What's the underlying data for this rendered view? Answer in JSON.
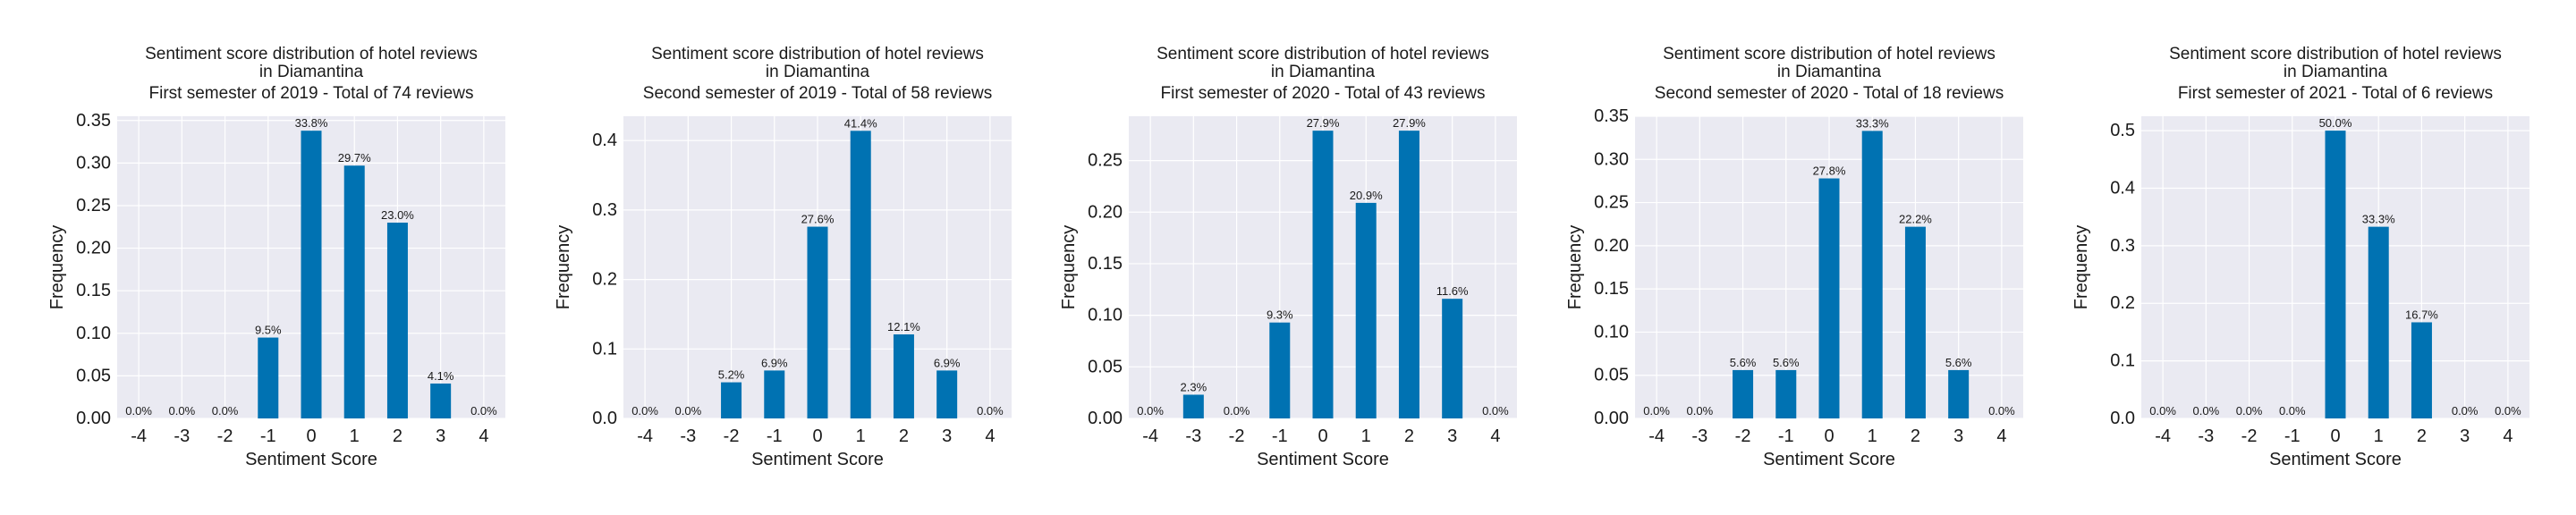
{
  "colors": {
    "bar": "#0072b2",
    "plot_bg": "#eaeaf2",
    "grid": "#ffffff",
    "text": "#1a1a1a"
  },
  "chart_data": [
    {
      "type": "bar",
      "title": [
        "Sentiment score distribution of hotel reviews",
        "in Diamantina",
        "First semester of 2019 - Total of 74 reviews"
      ],
      "xlabel": "Sentiment Score",
      "ylabel": "Frequency",
      "categories": [
        "-4",
        "-3",
        "-2",
        "-1",
        "0",
        "1",
        "2",
        "3",
        "4"
      ],
      "values": [
        0,
        0,
        0,
        0.095,
        0.338,
        0.297,
        0.23,
        0.041,
        0
      ],
      "data_labels": [
        "0.0%",
        "0.0%",
        "0.0%",
        "9.5%",
        "33.8%",
        "29.7%",
        "23.0%",
        "4.1%",
        "0.0%"
      ],
      "ylim": [
        0,
        0.355
      ],
      "yticks": [
        0,
        0.05,
        0.1,
        0.15,
        0.2,
        0.25,
        0.3,
        0.35
      ],
      "ytick_labels": [
        "0.00",
        "0.05",
        "0.10",
        "0.15",
        "0.20",
        "0.25",
        "0.30",
        "0.35"
      ],
      "grid": true
    },
    {
      "type": "bar",
      "title": [
        "Sentiment score distribution of hotel reviews",
        "in Diamantina",
        "Second semester of 2019 - Total of 58 reviews"
      ],
      "xlabel": "Sentiment Score",
      "ylabel": "Frequency",
      "categories": [
        "-4",
        "-3",
        "-2",
        "-1",
        "0",
        "1",
        "2",
        "3",
        "4"
      ],
      "values": [
        0,
        0,
        0.052,
        0.069,
        0.276,
        0.414,
        0.121,
        0.069,
        0
      ],
      "data_labels": [
        "0.0%",
        "0.0%",
        "5.2%",
        "6.9%",
        "27.6%",
        "41.4%",
        "12.1%",
        "6.9%",
        "0.0%"
      ],
      "ylim": [
        0,
        0.435
      ],
      "yticks": [
        0,
        0.1,
        0.2,
        0.3,
        0.4
      ],
      "ytick_labels": [
        "0.0",
        "0.1",
        "0.2",
        "0.3",
        "0.4"
      ],
      "grid": true
    },
    {
      "type": "bar",
      "title": [
        "Sentiment score distribution of hotel reviews",
        "in Diamantina",
        "First semester of 2020 - Total of 43 reviews"
      ],
      "xlabel": "Sentiment Score",
      "ylabel": "Frequency",
      "categories": [
        "-4",
        "-3",
        "-2",
        "-1",
        "0",
        "1",
        "2",
        "3",
        "4"
      ],
      "values": [
        0,
        0.023,
        0,
        0.093,
        0.279,
        0.209,
        0.279,
        0.116,
        0
      ],
      "data_labels": [
        "0.0%",
        "2.3%",
        "0.0%",
        "9.3%",
        "27.9%",
        "20.9%",
        "27.9%",
        "11.6%",
        "0.0%"
      ],
      "ylim": [
        0,
        0.293
      ],
      "yticks": [
        0,
        0.05,
        0.1,
        0.15,
        0.2,
        0.25
      ],
      "ytick_labels": [
        "0.00",
        "0.05",
        "0.10",
        "0.15",
        "0.20",
        "0.25"
      ],
      "grid": true
    },
    {
      "type": "bar",
      "title": [
        "Sentiment score distribution of hotel reviews",
        "in Diamantina",
        "Second semester of 2020 - Total of 18 reviews"
      ],
      "xlabel": "Sentiment Score",
      "ylabel": "Frequency",
      "categories": [
        "-4",
        "-3",
        "-2",
        "-1",
        "0",
        "1",
        "2",
        "3",
        "4"
      ],
      "values": [
        0,
        0,
        0.056,
        0.056,
        0.278,
        0.333,
        0.222,
        0.056,
        0
      ],
      "data_labels": [
        "0.0%",
        "0.0%",
        "5.6%",
        "5.6%",
        "27.8%",
        "33.3%",
        "22.2%",
        "5.6%",
        "0.0%"
      ],
      "ylim": [
        0,
        0.35
      ],
      "yticks": [
        0,
        0.05,
        0.1,
        0.15,
        0.2,
        0.25,
        0.3,
        0.35
      ],
      "ytick_labels": [
        "0.00",
        "0.05",
        "0.10",
        "0.15",
        "0.20",
        "0.25",
        "0.30",
        "0.35"
      ],
      "grid": true
    },
    {
      "type": "bar",
      "title": [
        "Sentiment score distribution of hotel reviews",
        "in Diamantina",
        "First semester of 2021 - Total of 6 reviews"
      ],
      "xlabel": "Sentiment Score",
      "ylabel": "Frequency",
      "categories": [
        "-4",
        "-3",
        "-2",
        "-1",
        "0",
        "1",
        "2",
        "3",
        "4"
      ],
      "values": [
        0,
        0,
        0,
        0,
        0.5,
        0.333,
        0.167,
        0,
        0
      ],
      "data_labels": [
        "0.0%",
        "0.0%",
        "0.0%",
        "0.0%",
        "50.0%",
        "33.3%",
        "16.7%",
        "0.0%",
        "0.0%"
      ],
      "ylim": [
        0,
        0.525
      ],
      "yticks": [
        0,
        0.1,
        0.2,
        0.3,
        0.4,
        0.5
      ],
      "ytick_labels": [
        "0.0",
        "0.1",
        "0.2",
        "0.3",
        "0.4",
        "0.5"
      ],
      "grid": true
    }
  ]
}
